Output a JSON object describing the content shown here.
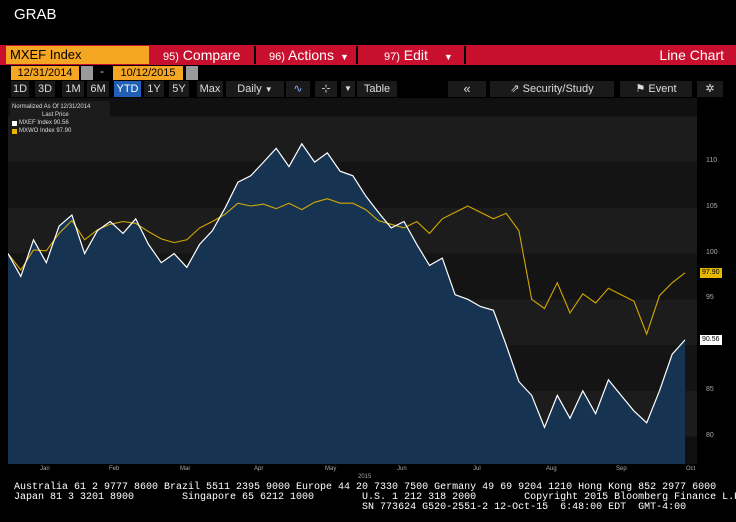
{
  "header": {
    "title": "GRAB"
  },
  "toolbar": {
    "index_field": "MXEF Index",
    "compare_label": "Compare",
    "compare_key": "95)",
    "actions_label": "Actions",
    "actions_key": "96)",
    "edit_label": "Edit",
    "edit_key": "97)",
    "view_label": "Line Chart",
    "start_date": "12/31/2014",
    "end_date": "10/12/2015",
    "range_buttons": [
      "1D",
      "3D",
      "1M",
      "6M",
      "YTD",
      "1Y",
      "5Y",
      "Max"
    ],
    "range_selected": "YTD",
    "frequency": "Daily",
    "table_label": "Table",
    "security_label": "Security/Study",
    "event_label": "Event"
  },
  "legend": {
    "title": "Normalized As Of 12/31/2014",
    "subtitle": "Last Price",
    "items": [
      {
        "label": "MXEF Index 90.56",
        "color": "#ffffff"
      },
      {
        "label": "MXWO Index 97.90",
        "color": "#e6b800"
      }
    ]
  },
  "last_labels": {
    "mxwo": "97.90",
    "mxef": "90.56"
  },
  "year_label": "2015",
  "chart_data": {
    "type": "line",
    "x_labels": [
      "Jan",
      "Feb",
      "Mar",
      "Apr",
      "May",
      "Jun",
      "Jul",
      "Aug",
      "Sep",
      "Oct"
    ],
    "ylim": [
      77,
      117
    ],
    "yticks": [
      80,
      85,
      90,
      95,
      100,
      105,
      110
    ],
    "grid": true,
    "legend_position": "top-left",
    "series": [
      {
        "name": "MXEF Index",
        "color": "#ffffff",
        "area_color": "#173352",
        "values": [
          100,
          97.5,
          101.5,
          99,
          103,
          104.2,
          100,
          102.5,
          103.5,
          102.2,
          103.8,
          101,
          99,
          100,
          98.5,
          101,
          102.5,
          105,
          107.8,
          108.5,
          110,
          111.5,
          109.5,
          112,
          110,
          111,
          109,
          108.5,
          106.3,
          104.5,
          102.8,
          103.5,
          101,
          98.7,
          99.5,
          95.5,
          95,
          94.2,
          93.8,
          90,
          86,
          84.5,
          81,
          84.5,
          82,
          85,
          82.5,
          86.2,
          84.5,
          82.8,
          81.5,
          85,
          89,
          90.56
        ]
      },
      {
        "name": "MXWO Index",
        "color": "#d4a800",
        "values": [
          100,
          98.2,
          100.4,
          100.3,
          102.2,
          103.6,
          101.5,
          102.6,
          103.2,
          103.5,
          103.3,
          102.4,
          101.6,
          101.2,
          101.5,
          102.8,
          103.5,
          104.3,
          105.5,
          105.2,
          105.4,
          104.9,
          105.5,
          104.8,
          105.6,
          106,
          105.5,
          105.5,
          104.8,
          103.6,
          103.2,
          102.8,
          103.5,
          102.2,
          103.8,
          104.5,
          105.2,
          104.5,
          103.8,
          104.4,
          102.5,
          95,
          94,
          96.8,
          93.5,
          95.6,
          94.6,
          96.2,
          95.5,
          94.8,
          91.2,
          95.4,
          96.8,
          97.9
        ]
      }
    ]
  },
  "footer": {
    "line1": "Australia 61 2 9777 8600 Brazil 5511 2395 9000 Europe 44 20 7330 7500 Germany 49 69 9204 1210 Hong Kong 852 2977 6000",
    "line2": "Japan 81 3 3201 8900        Singapore 65 6212 1000        U.S. 1 212 318 2000        Copyright 2015 Bloomberg Finance L.P.",
    "line3": "                                                          SN 773624 G520-2551-2 12-Oct-15  6:48:00 EDT  GMT-4:00"
  }
}
